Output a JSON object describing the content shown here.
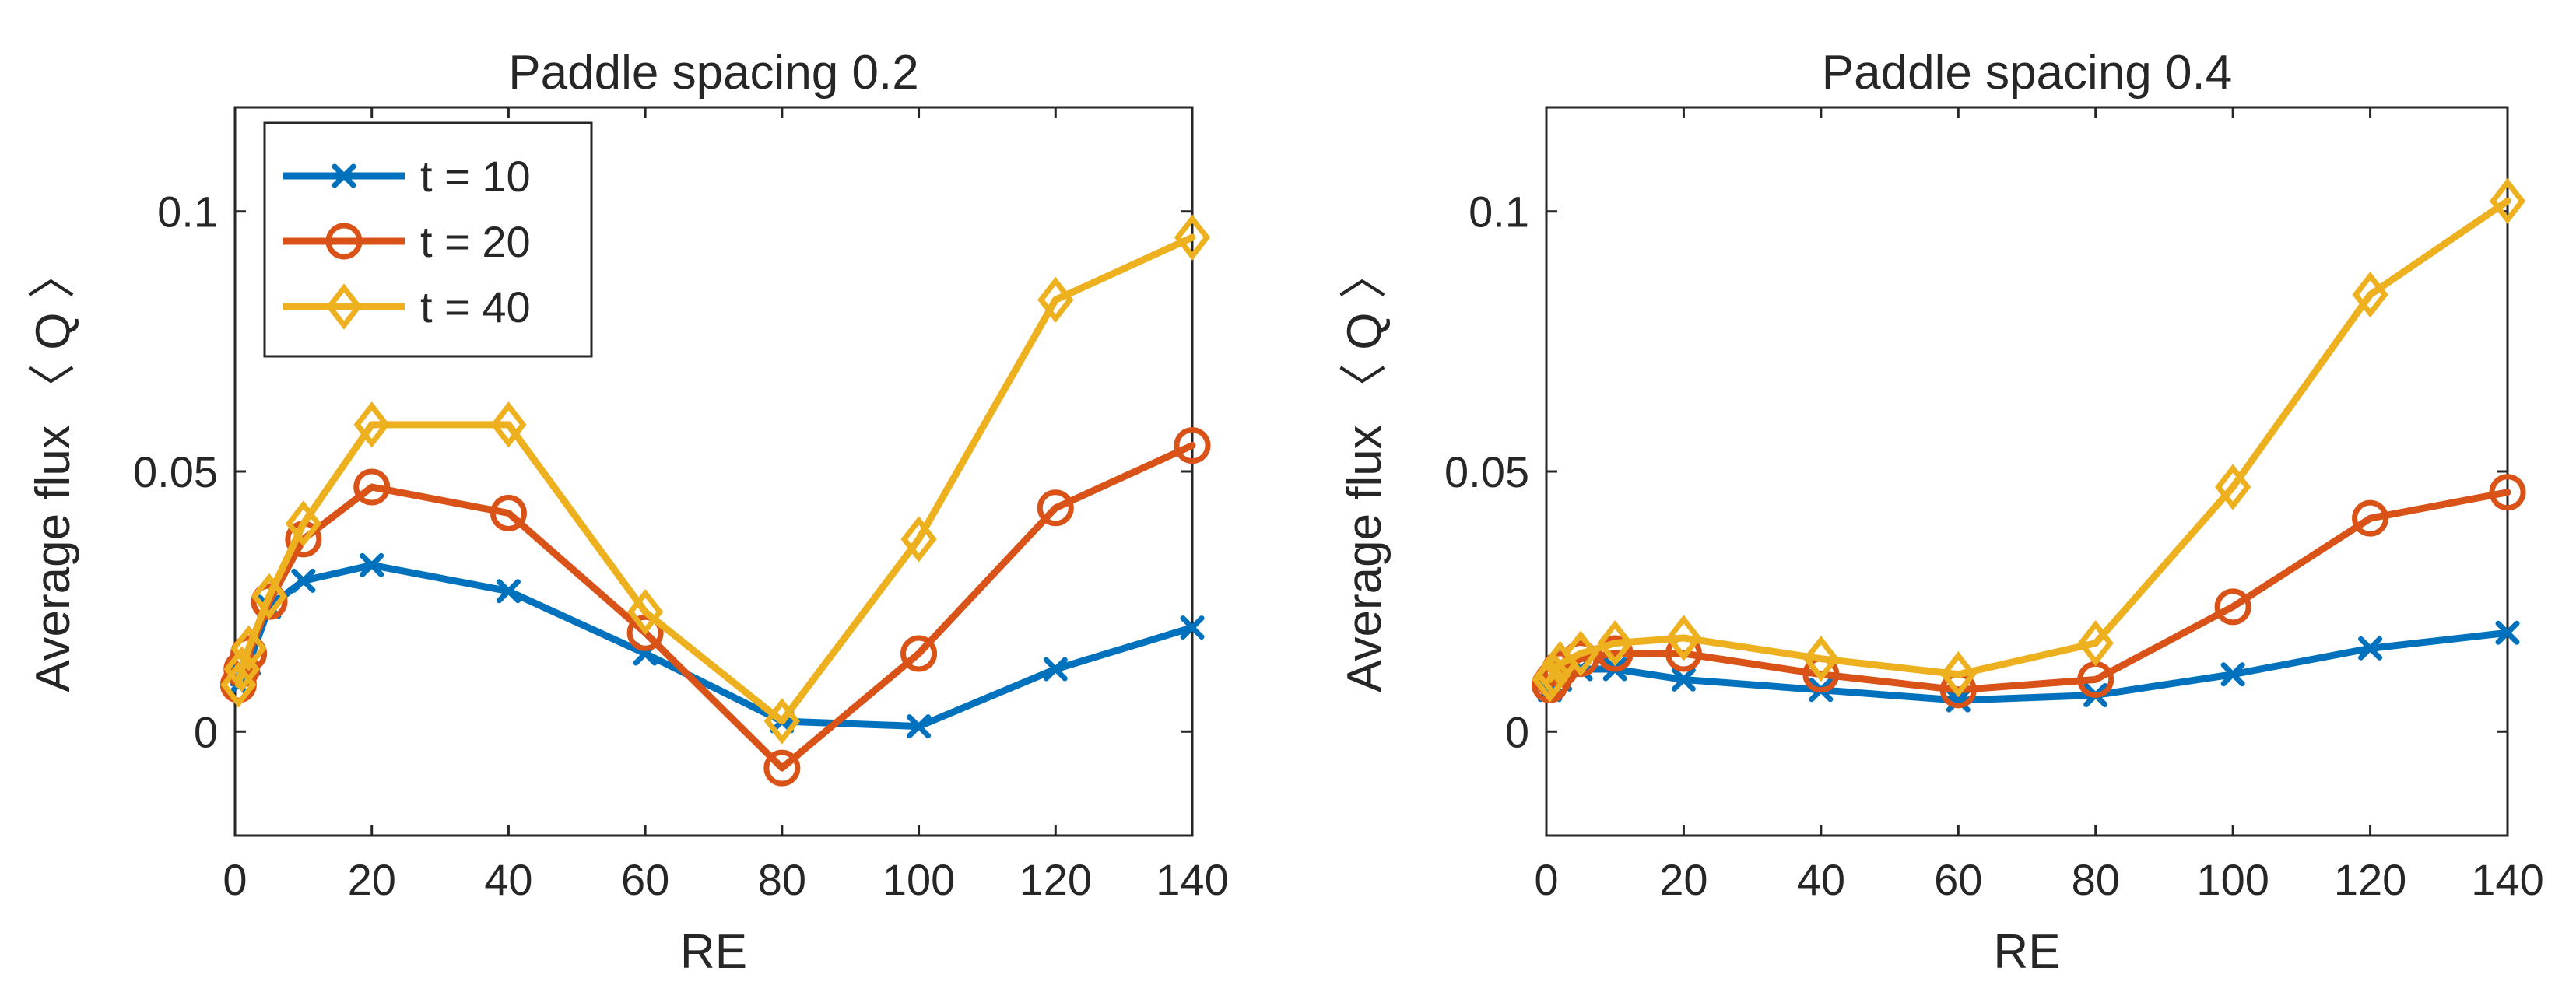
{
  "chart_data": [
    {
      "type": "line",
      "title": "Paddle spacing 0.2",
      "xlabel": "RE",
      "ylabel": "Average flux 〈 Q 〉",
      "xlim": [
        0,
        140
      ],
      "ylim": [
        -0.02,
        0.12
      ],
      "xticks": [
        0,
        20,
        40,
        60,
        80,
        100,
        120,
        140
      ],
      "xtick_labels": [
        "0",
        "20",
        "40",
        "60",
        "80",
        "100",
        "120",
        "140"
      ],
      "yticks": [
        0,
        0.05,
        0.1
      ],
      "ytick_labels": [
        "0",
        "0.05",
        "0.1"
      ],
      "legend": {
        "position": "top-left",
        "show": true
      },
      "series": [
        {
          "name": "t = 10",
          "color": "#0072BD",
          "marker": "x",
          "x": [
            0.5,
            1,
            2,
            5,
            10,
            20,
            40,
            60,
            80,
            100,
            120,
            140
          ],
          "y": [
            0.009,
            0.011,
            0.013,
            0.024,
            0.029,
            0.032,
            0.027,
            0.015,
            0.002,
            0.001,
            0.012,
            0.02
          ]
        },
        {
          "name": "t = 20",
          "color": "#D95319",
          "marker": "o",
          "x": [
            0.5,
            1,
            2,
            5,
            10,
            20,
            40,
            60,
            80,
            100,
            120,
            140
          ],
          "y": [
            0.009,
            0.012,
            0.015,
            0.025,
            0.037,
            0.047,
            0.042,
            0.019,
            -0.007,
            0.015,
            0.043,
            0.055
          ]
        },
        {
          "name": "t = 40",
          "color": "#EDB120",
          "marker": "d",
          "x": [
            0.5,
            1,
            2,
            5,
            10,
            20,
            40,
            60,
            80,
            100,
            120,
            140
          ],
          "y": [
            0.009,
            0.012,
            0.016,
            0.026,
            0.04,
            0.059,
            0.059,
            0.023,
            0.002,
            0.037,
            0.083,
            0.095
          ]
        }
      ]
    },
    {
      "type": "line",
      "title": "Paddle spacing 0.4",
      "xlabel": "RE",
      "ylabel": "Average flux 〈 Q 〉",
      "xlim": [
        0,
        140
      ],
      "ylim": [
        -0.02,
        0.12
      ],
      "xticks": [
        0,
        20,
        40,
        60,
        80,
        100,
        120,
        140
      ],
      "xtick_labels": [
        "0",
        "20",
        "40",
        "60",
        "80",
        "100",
        "120",
        "140"
      ],
      "yticks": [
        0,
        0.05,
        0.1
      ],
      "ytick_labels": [
        "0",
        "0.05",
        "0.1"
      ],
      "legend": {
        "show": false
      },
      "series": [
        {
          "name": "t = 10",
          "color": "#0072BD",
          "marker": "x",
          "x": [
            0.5,
            1,
            2,
            5,
            10,
            20,
            40,
            60,
            80,
            100,
            120,
            140
          ],
          "y": [
            0.008,
            0.009,
            0.01,
            0.012,
            0.012,
            0.01,
            0.008,
            0.006,
            0.007,
            0.011,
            0.016,
            0.019
          ]
        },
        {
          "name": "t = 20",
          "color": "#D95319",
          "marker": "o",
          "x": [
            0.5,
            1,
            2,
            5,
            10,
            20,
            40,
            60,
            80,
            100,
            120,
            140
          ],
          "y": [
            0.009,
            0.01,
            0.012,
            0.014,
            0.015,
            0.015,
            0.011,
            0.008,
            0.01,
            0.024,
            0.041,
            0.046
          ]
        },
        {
          "name": "t = 40",
          "color": "#EDB120",
          "marker": "d",
          "x": [
            0.5,
            1,
            2,
            5,
            10,
            20,
            40,
            60,
            80,
            100,
            120,
            140
          ],
          "y": [
            0.01,
            0.011,
            0.013,
            0.015,
            0.017,
            0.018,
            0.014,
            0.011,
            0.017,
            0.047,
            0.084,
            0.102
          ]
        }
      ]
    }
  ]
}
